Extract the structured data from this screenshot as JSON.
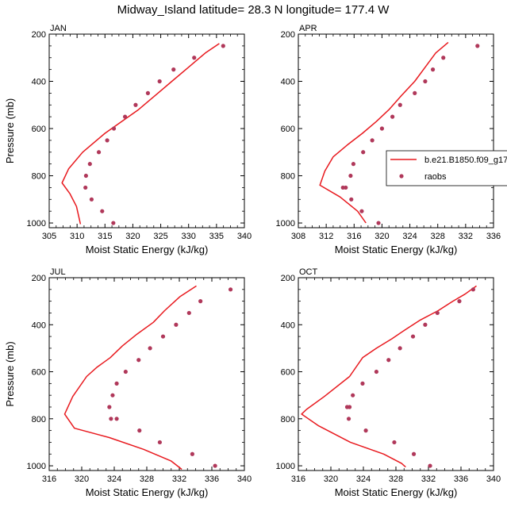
{
  "title": "Midway_Island  latitude= 28.3 N longitude= 177.4 W",
  "colors": {
    "model": "#e8191e",
    "obs": "#b0385a"
  },
  "legend": {
    "model_label": "b.e21.B1850.f09_g17",
    "obs_label": "raobs",
    "position": "right of APR panel"
  },
  "chart_data": [
    {
      "type": "line",
      "panel": "JAN",
      "xlabel": "Moist Static Energy (kJ/kg)",
      "ylabel": "Pressure (mb)",
      "xlim": [
        305,
        340
      ],
      "xticks": [
        305,
        310,
        315,
        320,
        325,
        330,
        335,
        340
      ],
      "ylim": [
        200,
        1020
      ],
      "yticks": [
        200,
        400,
        600,
        800,
        1000
      ],
      "series": [
        {
          "name": "b.e21.B1850.f09_g17",
          "style": "line",
          "x": [
            335.5,
            333,
            330,
            327,
            324,
            321,
            318,
            315,
            311,
            308.5,
            307.3,
            308.7,
            309.9,
            310.6
          ],
          "y": [
            240,
            280,
            340,
            400,
            460,
            520,
            570,
            620,
            700,
            770,
            830,
            875,
            930,
            1005
          ]
        },
        {
          "name": "raobs",
          "style": "scatter",
          "x": [
            336.2,
            331.0,
            327.3,
            324.8,
            322.7,
            320.5,
            318.6,
            316.6,
            315.4,
            313.9,
            312.3,
            311.6,
            311.5,
            312.6,
            314.5,
            316.5
          ],
          "y": [
            250,
            300,
            350,
            400,
            450,
            500,
            550,
            600,
            650,
            700,
            750,
            800,
            850,
            900,
            950,
            1000
          ]
        }
      ]
    },
    {
      "type": "line",
      "panel": "APR",
      "xlabel": "Moist Static Energy (kJ/kg)",
      "ylabel": "",
      "xlim": [
        308,
        336
      ],
      "xticks": [
        308,
        312,
        316,
        320,
        324,
        328,
        332,
        336
      ],
      "ylim": [
        200,
        1020
      ],
      "yticks": [
        200,
        400,
        600,
        800,
        1000
      ],
      "series": [
        {
          "name": "b.e21.B1850.f09_g17",
          "style": "line",
          "x": [
            329.5,
            327.7,
            326.2,
            324.7,
            322.8,
            321.0,
            319.2,
            317.2,
            315.0,
            313.0,
            311.8,
            311.1,
            314.0,
            316.5,
            317.7
          ],
          "y": [
            235,
            280,
            340,
            400,
            460,
            520,
            570,
            620,
            670,
            720,
            780,
            840,
            890,
            950,
            1000
          ]
        },
        {
          "name": "raobs",
          "style": "scatter",
          "x": [
            333.7,
            328.8,
            327.3,
            326.2,
            324.7,
            322.6,
            321.5,
            320.0,
            318.6,
            317.3,
            315.9,
            315.5,
            314.8,
            314.4,
            315.6,
            317.1,
            319.5
          ],
          "y": [
            250,
            300,
            350,
            400,
            450,
            500,
            550,
            600,
            650,
            700,
            750,
            800,
            850,
            850,
            900,
            950,
            1000
          ]
        }
      ]
    },
    {
      "type": "line",
      "panel": "JUL",
      "xlabel": "Moist Static Energy (kJ/kg)",
      "ylabel": "Pressure (mb)",
      "xlim": [
        316,
        340
      ],
      "xticks": [
        316,
        320,
        324,
        328,
        332,
        336,
        340
      ],
      "ylim": [
        200,
        1020
      ],
      "yticks": [
        200,
        400,
        600,
        800,
        1000
      ],
      "series": [
        {
          "name": "b.e21.B1850.f09_g17",
          "style": "line",
          "x": [
            334.1,
            332.1,
            330.2,
            328.8,
            326.8,
            325.0,
            323.5,
            321.9,
            320.6,
            318.9,
            317.9,
            319.1,
            323.4,
            327.6,
            331.0,
            332.3
          ],
          "y": [
            235,
            280,
            340,
            390,
            440,
            490,
            540,
            580,
            620,
            705,
            780,
            840,
            880,
            930,
            980,
            1015
          ]
        },
        {
          "name": "raobs",
          "style": "scatter",
          "x": [
            338.3,
            334.6,
            333.2,
            331.6,
            330.0,
            328.4,
            327.0,
            325.4,
            324.3,
            323.8,
            323.4,
            323.6,
            324.3,
            327.1,
            329.6,
            333.6,
            336.4
          ],
          "y": [
            250,
            300,
            350,
            400,
            450,
            500,
            550,
            600,
            650,
            700,
            750,
            800,
            800,
            850,
            900,
            950,
            1000
          ]
        }
      ]
    },
    {
      "type": "line",
      "panel": "OCT",
      "xlabel": "Moist Static Energy (kJ/kg)",
      "ylabel": "",
      "xlim": [
        316,
        340
      ],
      "xticks": [
        316,
        320,
        324,
        328,
        332,
        336,
        340
      ],
      "ylim": [
        200,
        1020
      ],
      "yticks": [
        200,
        400,
        600,
        800,
        1000
      ],
      "series": [
        {
          "name": "b.e21.B1850.f09_g17",
          "style": "line",
          "x": [
            337.9,
            336.5,
            335.0,
            333.2,
            331.0,
            329.2,
            327.5,
            325.6,
            323.9,
            322.3,
            319.2,
            317.0,
            316.4,
            318.5,
            322.4,
            326.5,
            328.7,
            329.2
          ],
          "y": [
            235,
            270,
            300,
            340,
            380,
            420,
            460,
            500,
            540,
            620,
            705,
            760,
            780,
            830,
            900,
            950,
            990,
            1005
          ]
        },
        {
          "name": "raobs",
          "style": "scatter",
          "x": [
            337.5,
            335.8,
            333.1,
            331.6,
            330.1,
            328.5,
            327.1,
            325.6,
            323.9,
            322.7,
            322.3,
            322.0,
            322.2,
            324.3,
            327.8,
            330.2,
            332.2
          ],
          "y": [
            250,
            300,
            350,
            400,
            450,
            500,
            550,
            600,
            650,
            700,
            750,
            750,
            800,
            850,
            900,
            950,
            1000
          ]
        }
      ]
    }
  ]
}
